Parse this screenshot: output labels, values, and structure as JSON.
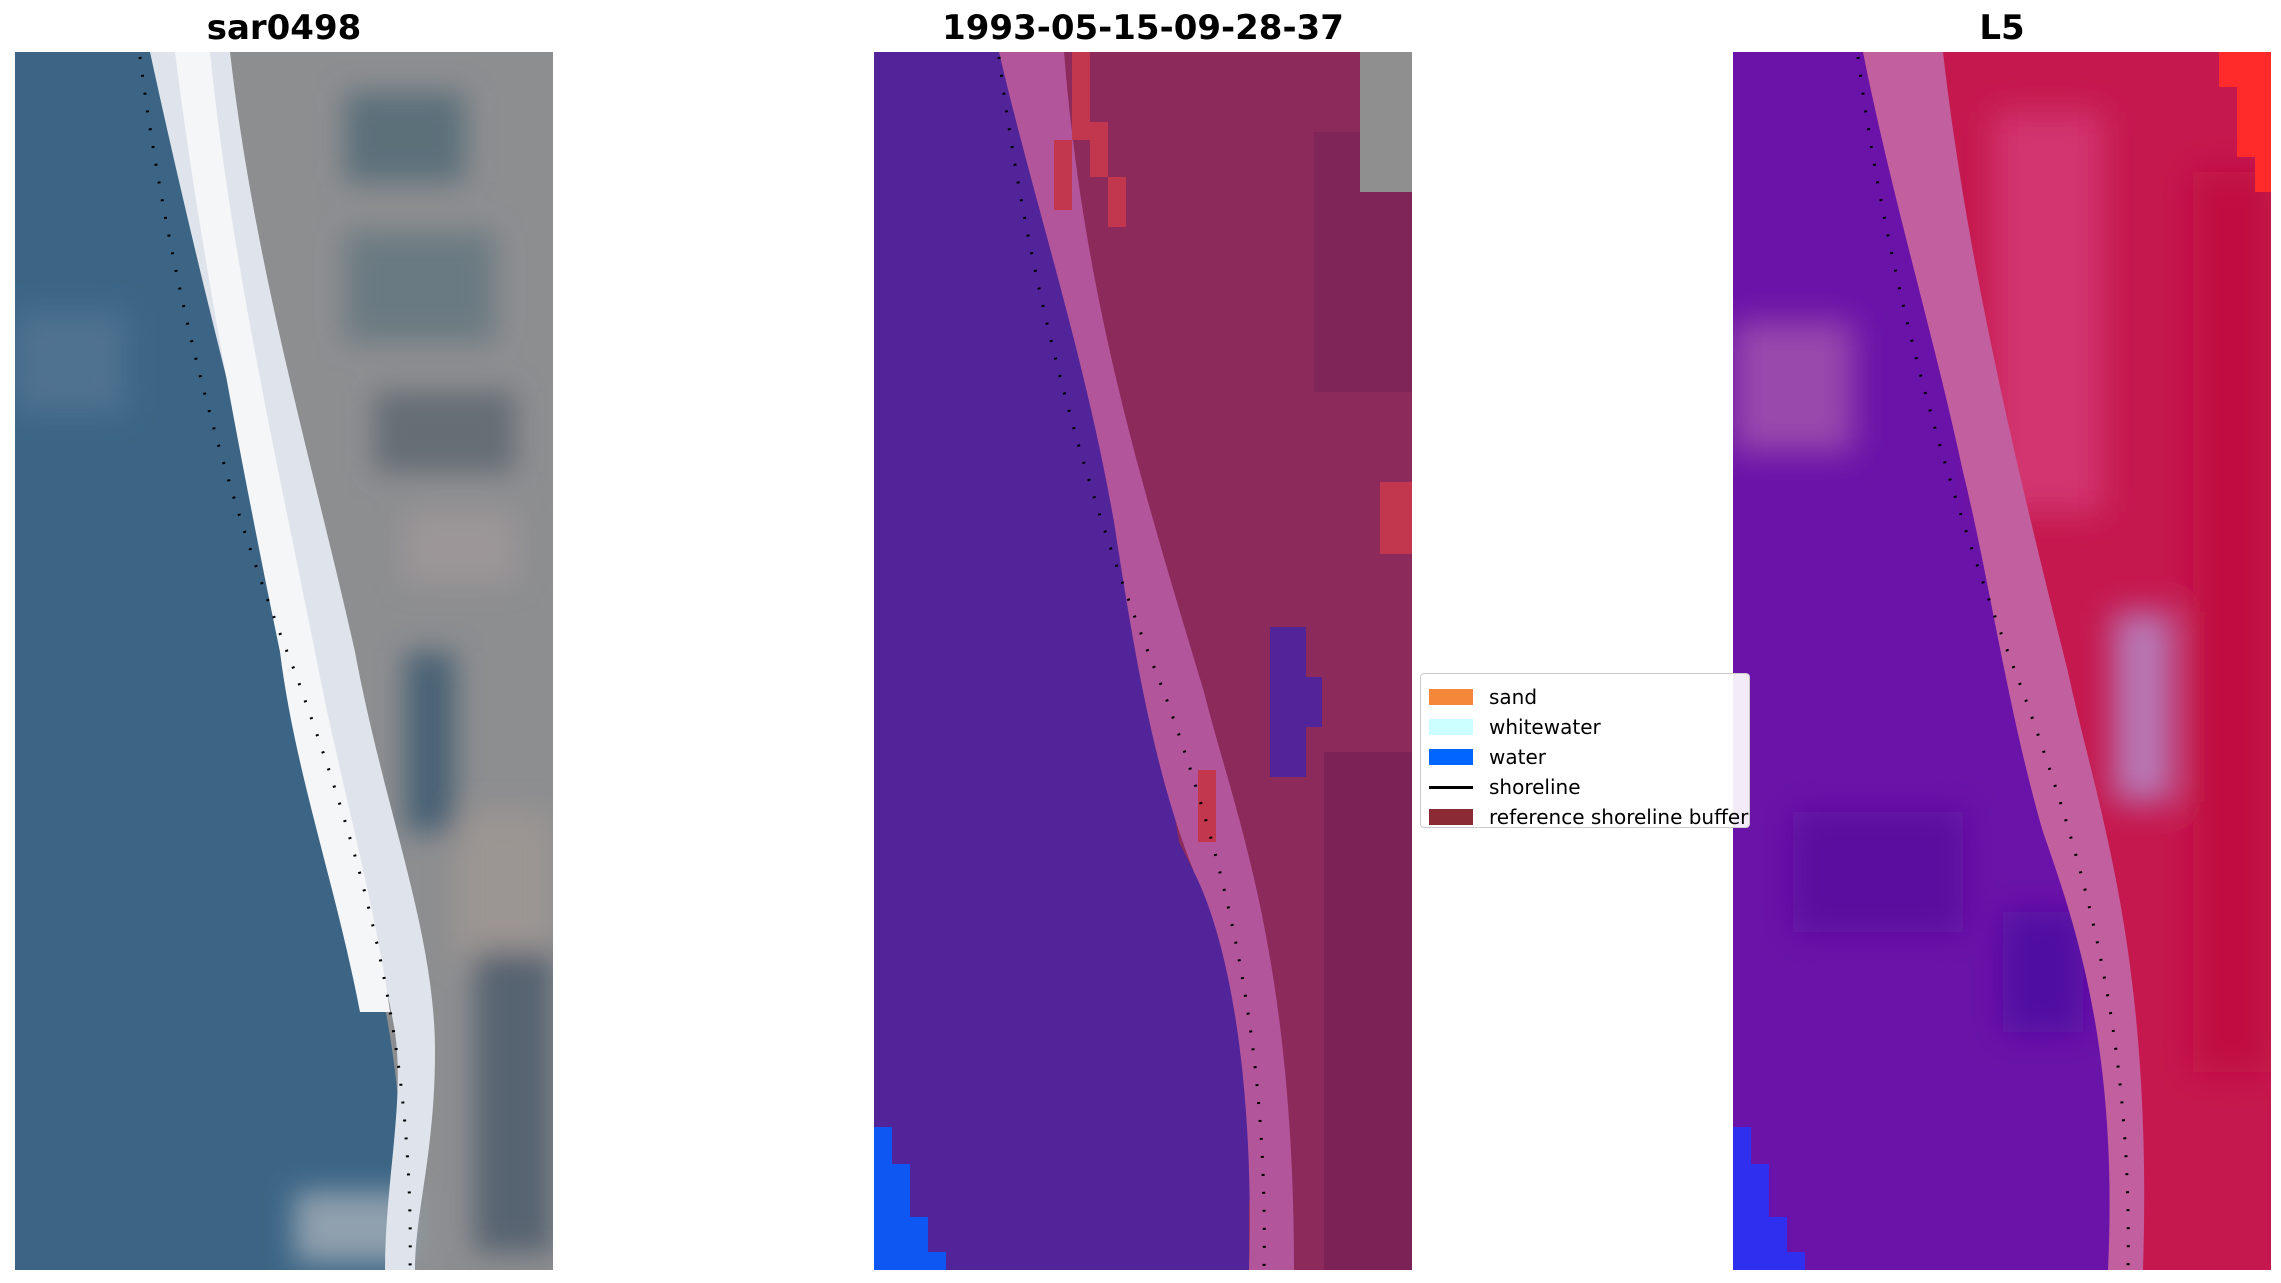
{
  "panels": [
    {
      "title": "sar0498"
    },
    {
      "title": "1993-05-15-09-28-37"
    },
    {
      "title": "L5"
    }
  ],
  "legend": {
    "items": [
      {
        "label": "sand",
        "color": "#f5873a"
      },
      {
        "label": "whitewater",
        "color": "#ccffff"
      },
      {
        "label": "water",
        "color": "#0066ff"
      },
      {
        "label": "shoreline",
        "color": "#000000"
      },
      {
        "label": "reference shoreline buffer",
        "color": "#8b2a35"
      }
    ]
  }
}
